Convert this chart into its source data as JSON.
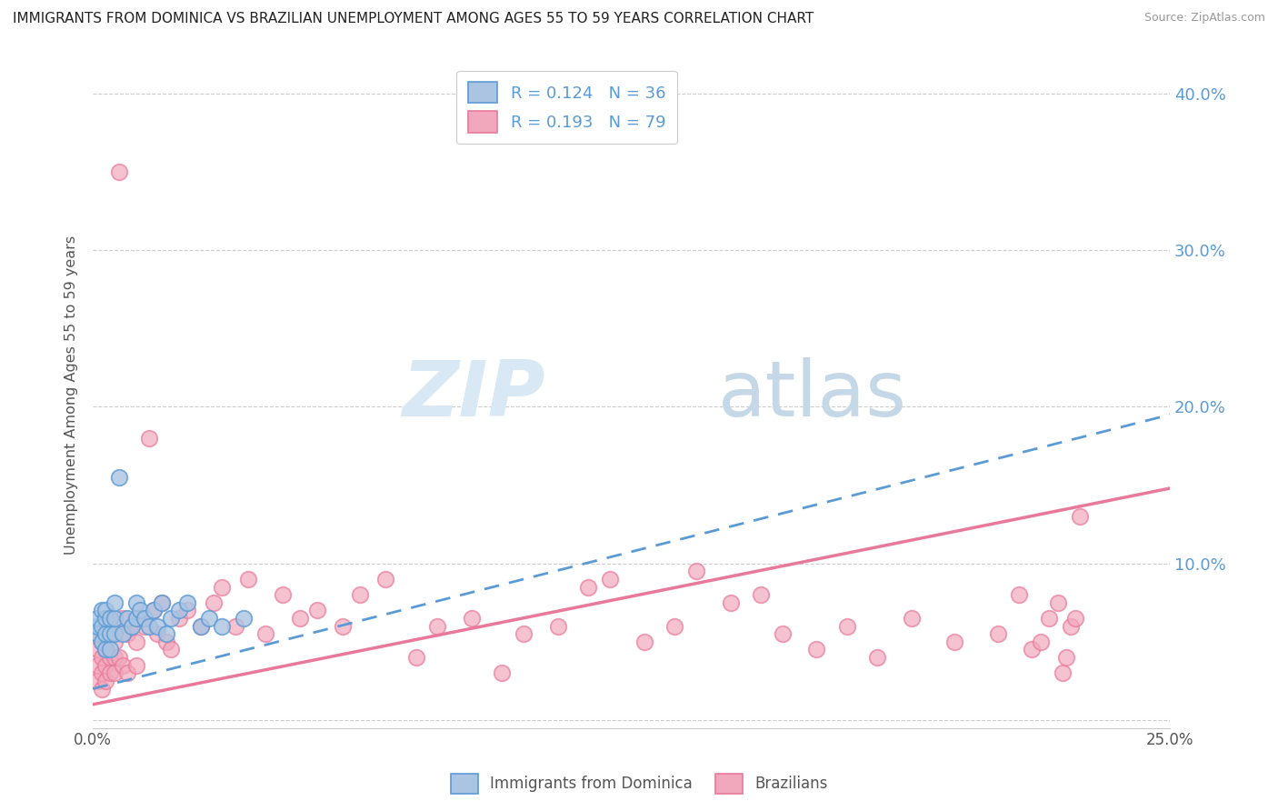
{
  "title": "IMMIGRANTS FROM DOMINICA VS BRAZILIAN UNEMPLOYMENT AMONG AGES 55 TO 59 YEARS CORRELATION CHART",
  "source": "Source: ZipAtlas.com",
  "ylabel": "Unemployment Among Ages 55 to 59 years",
  "xlabel": "",
  "xlim": [
    0.0,
    0.25
  ],
  "ylim": [
    -0.005,
    0.42
  ],
  "yticks": [
    0.0,
    0.1,
    0.2,
    0.3,
    0.4
  ],
  "ytick_labels_left": [
    "",
    "",
    "",
    "",
    ""
  ],
  "ytick_labels_right": [
    "",
    "10.0%",
    "20.0%",
    "30.0%",
    "40.0%"
  ],
  "xticks": [
    0.0,
    0.05,
    0.1,
    0.15,
    0.2,
    0.25
  ],
  "xtick_labels": [
    "0.0%",
    "",
    "",
    "",
    "",
    "25.0%"
  ],
  "color_dominica": "#aac4e2",
  "color_brazilians": "#f2a8bc",
  "color_line_dominica": "#5b9bd5",
  "color_line_brazilians": "#e8799a",
  "dominica_x": [
    0.001,
    0.001,
    0.001,
    0.002,
    0.002,
    0.002,
    0.003,
    0.003,
    0.003,
    0.003,
    0.004,
    0.004,
    0.004,
    0.005,
    0.005,
    0.005,
    0.006,
    0.007,
    0.008,
    0.009,
    0.01,
    0.01,
    0.011,
    0.012,
    0.013,
    0.014,
    0.015,
    0.016,
    0.017,
    0.018,
    0.02,
    0.022,
    0.025,
    0.027,
    0.03,
    0.035
  ],
  "dominica_y": [
    0.055,
    0.06,
    0.065,
    0.05,
    0.06,
    0.07,
    0.045,
    0.055,
    0.065,
    0.07,
    0.045,
    0.055,
    0.065,
    0.055,
    0.065,
    0.075,
    0.155,
    0.055,
    0.065,
    0.06,
    0.065,
    0.075,
    0.07,
    0.065,
    0.06,
    0.07,
    0.06,
    0.075,
    0.055,
    0.065,
    0.07,
    0.075,
    0.06,
    0.065,
    0.06,
    0.065
  ],
  "brazilians_x": [
    0.001,
    0.001,
    0.001,
    0.001,
    0.002,
    0.002,
    0.002,
    0.002,
    0.003,
    0.003,
    0.003,
    0.003,
    0.004,
    0.004,
    0.004,
    0.005,
    0.005,
    0.005,
    0.006,
    0.006,
    0.007,
    0.007,
    0.008,
    0.008,
    0.009,
    0.01,
    0.01,
    0.011,
    0.012,
    0.013,
    0.014,
    0.015,
    0.016,
    0.017,
    0.018,
    0.02,
    0.022,
    0.025,
    0.028,
    0.03,
    0.033,
    0.036,
    0.04,
    0.044,
    0.048,
    0.052,
    0.058,
    0.062,
    0.068,
    0.075,
    0.08,
    0.088,
    0.095,
    0.1,
    0.108,
    0.115,
    0.12,
    0.128,
    0.135,
    0.14,
    0.148,
    0.155,
    0.16,
    0.168,
    0.175,
    0.182,
    0.19,
    0.2,
    0.21,
    0.215,
    0.218,
    0.22,
    0.222,
    0.224,
    0.225,
    0.226,
    0.227,
    0.228,
    0.229
  ],
  "brazilians_y": [
    0.055,
    0.045,
    0.035,
    0.025,
    0.05,
    0.04,
    0.03,
    0.02,
    0.055,
    0.045,
    0.035,
    0.025,
    0.055,
    0.04,
    0.03,
    0.05,
    0.04,
    0.03,
    0.35,
    0.04,
    0.065,
    0.035,
    0.055,
    0.03,
    0.06,
    0.05,
    0.035,
    0.065,
    0.06,
    0.18,
    0.07,
    0.055,
    0.075,
    0.05,
    0.045,
    0.065,
    0.07,
    0.06,
    0.075,
    0.085,
    0.06,
    0.09,
    0.055,
    0.08,
    0.065,
    0.07,
    0.06,
    0.08,
    0.09,
    0.04,
    0.06,
    0.065,
    0.03,
    0.055,
    0.06,
    0.085,
    0.09,
    0.05,
    0.06,
    0.095,
    0.075,
    0.08,
    0.055,
    0.045,
    0.06,
    0.04,
    0.065,
    0.05,
    0.055,
    0.08,
    0.045,
    0.05,
    0.065,
    0.075,
    0.03,
    0.04,
    0.06,
    0.065,
    0.13
  ],
  "dom_trend_x0": 0.0,
  "dom_trend_y0": 0.02,
  "dom_trend_x1": 0.25,
  "dom_trend_y1": 0.195,
  "bra_trend_x0": 0.0,
  "bra_trend_y0": 0.01,
  "bra_trend_x1": 0.25,
  "bra_trend_y1": 0.148
}
